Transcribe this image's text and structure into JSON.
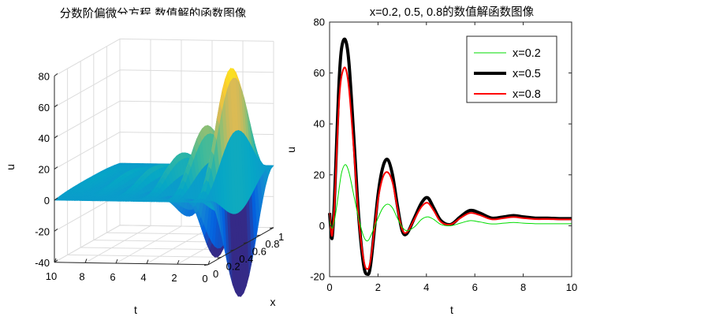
{
  "chart_data": [
    {
      "type": "surface",
      "title": "分数阶偏微分方程 数值解的函数图像",
      "xlabel": "x",
      "ylabel": "t",
      "zlabel": "u",
      "xlim": [
        0,
        1
      ],
      "ylim": [
        0,
        10
      ],
      "zlim": [
        -40,
        80
      ],
      "x_ticks": [
        "0",
        "0.2",
        "0.4",
        "0.6",
        "0.8",
        "1"
      ],
      "t_ticks": [
        "0",
        "2",
        "4",
        "6",
        "8",
        "10"
      ],
      "z_ticks": [
        "-40",
        "-20",
        "0",
        "20",
        "40",
        "60",
        "80"
      ],
      "grid": true,
      "colormap": "parula",
      "surface_peak": {
        "t": 0.65,
        "x": 0.5,
        "u": 73
      }
    },
    {
      "type": "line",
      "title": "x=0.2, 0.5, 0.8的数值解函数图像",
      "xlabel": "t",
      "ylabel": "u",
      "xlim": [
        0,
        10
      ],
      "ylim": [
        -20,
        80
      ],
      "x_ticks": [
        "0",
        "2",
        "4",
        "6",
        "8",
        "10"
      ],
      "y_ticks": [
        "-20",
        "0",
        "20",
        "40",
        "60",
        "80"
      ],
      "legend_position": "top-right",
      "grid": false,
      "series": [
        {
          "name": "x=0.2",
          "color": "#00dd00",
          "x": [
            0,
            0.1,
            0.2,
            0.3,
            0.4,
            0.5,
            0.65,
            0.8,
            1.0,
            1.2,
            1.4,
            1.55,
            1.7,
            2.0,
            2.2,
            2.4,
            2.6,
            2.8,
            3.0,
            3.2,
            3.5,
            3.8,
            4.05,
            4.3,
            4.6,
            5.0,
            5.4,
            5.8,
            6.2,
            6.7,
            7.2,
            7.6,
            8.0,
            8.5,
            9.0,
            9.5,
            10.0
          ],
          "values": [
            2,
            -1,
            2,
            8,
            15,
            21,
            24,
            21,
            12,
            3,
            -4,
            -6,
            -4,
            3,
            7,
            8.5,
            7,
            3,
            -0.5,
            -2,
            -0.5,
            2.5,
            3.5,
            2.5,
            0.5,
            0,
            1,
            2,
            1.5,
            0.7,
            1,
            1.3,
            1,
            0.8,
            0.8,
            0.8,
            0.8
          ]
        },
        {
          "name": "x=0.5",
          "color": "#000000",
          "x": [
            0,
            0.1,
            0.2,
            0.3,
            0.4,
            0.5,
            0.65,
            0.8,
            1.0,
            1.2,
            1.4,
            1.55,
            1.7,
            2.0,
            2.2,
            2.4,
            2.6,
            2.8,
            3.0,
            3.2,
            3.5,
            3.8,
            4.05,
            4.3,
            4.6,
            5.0,
            5.4,
            5.8,
            6.2,
            6.7,
            7.2,
            7.6,
            8.0,
            8.5,
            9.0,
            9.5,
            10.0
          ],
          "values": [
            5,
            -5,
            10,
            35,
            58,
            70,
            73,
            64,
            35,
            4,
            -15,
            -19,
            -15,
            12,
            23,
            26,
            20,
            8,
            -2,
            -3,
            3,
            9,
            11,
            7,
            2,
            0.5,
            3.5,
            6,
            5,
            3,
            3.5,
            4,
            3.5,
            3,
            3,
            2.8,
            2.8
          ]
        },
        {
          "name": "x=0.8",
          "color": "#ff0000",
          "x": [
            0,
            0.1,
            0.2,
            0.3,
            0.4,
            0.5,
            0.65,
            0.8,
            1.0,
            1.2,
            1.4,
            1.55,
            1.7,
            2.0,
            2.2,
            2.4,
            2.6,
            2.8,
            3.0,
            3.2,
            3.5,
            3.8,
            4.05,
            4.3,
            4.6,
            5.0,
            5.4,
            5.8,
            6.2,
            6.7,
            7.2,
            7.6,
            8.0,
            8.5,
            9.0,
            9.5,
            10.0
          ],
          "values": [
            5,
            -4,
            8,
            30,
            50,
            59,
            62,
            54,
            30,
            3,
            -13,
            -17,
            -13,
            10,
            19,
            21,
            17,
            7,
            -1.5,
            -2.5,
            2.5,
            7.5,
            9,
            6,
            1.5,
            0.5,
            3,
            5,
            4.2,
            2.5,
            3,
            3.4,
            3,
            2.6,
            2.6,
            2.5,
            2.5
          ]
        }
      ]
    }
  ]
}
